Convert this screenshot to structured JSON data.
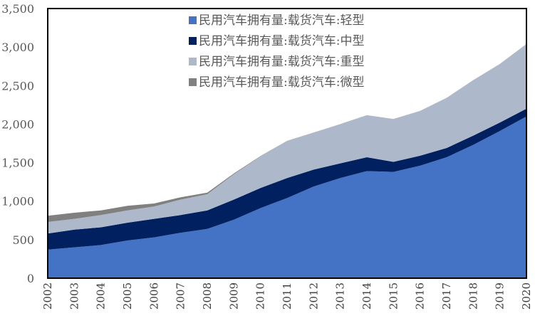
{
  "chart_data": {
    "type": "area",
    "stacked": true,
    "title": "",
    "xlabel": "",
    "ylabel": "",
    "ylim": [
      0,
      3500
    ],
    "yticks": [
      "0",
      "500",
      "1,000",
      "1,500",
      "2,000",
      "2,500",
      "3,000",
      "3,500"
    ],
    "ytick_values": [
      0,
      500,
      1000,
      1500,
      2000,
      2500,
      3000,
      3500
    ],
    "grid": false,
    "legend_position": "top-center",
    "categories": [
      "2002",
      "2003",
      "2004",
      "2005",
      "2006",
      "2007",
      "2008",
      "2009",
      "2010",
      "2011",
      "2012",
      "2013",
      "2014",
      "2015",
      "2016",
      "2017",
      "2018",
      "2019",
      "2020"
    ],
    "series": [
      {
        "name": "民用汽车拥有量:载货汽车:轻型",
        "color": "#4472C4",
        "values": [
          370,
          400,
          430,
          490,
          530,
          590,
          640,
          760,
          910,
          1040,
          1190,
          1300,
          1390,
          1380,
          1460,
          1570,
          1730,
          1910,
          2100
        ]
      },
      {
        "name": "民用汽车拥有量:载货汽车:中型",
        "color": "#002060",
        "values": [
          210,
          230,
          230,
          230,
          240,
          230,
          240,
          260,
          260,
          260,
          220,
          190,
          180,
          130,
          130,
          120,
          120,
          110,
          100
        ]
      },
      {
        "name": "民用汽车拥有量:载货汽车:重型",
        "color": "#ADB9CA",
        "values": [
          150,
          140,
          160,
          160,
          160,
          200,
          210,
          330,
          410,
          480,
          480,
          510,
          545,
          555,
          580,
          650,
          720,
          760,
          840
        ]
      },
      {
        "name": "民用汽车拥有量:载货汽车:微型",
        "color": "#808080",
        "values": [
          80,
          80,
          60,
          60,
          40,
          30,
          20,
          10,
          5,
          2,
          1,
          1,
          1,
          1,
          1,
          1,
          1,
          1,
          1
        ]
      }
    ]
  }
}
